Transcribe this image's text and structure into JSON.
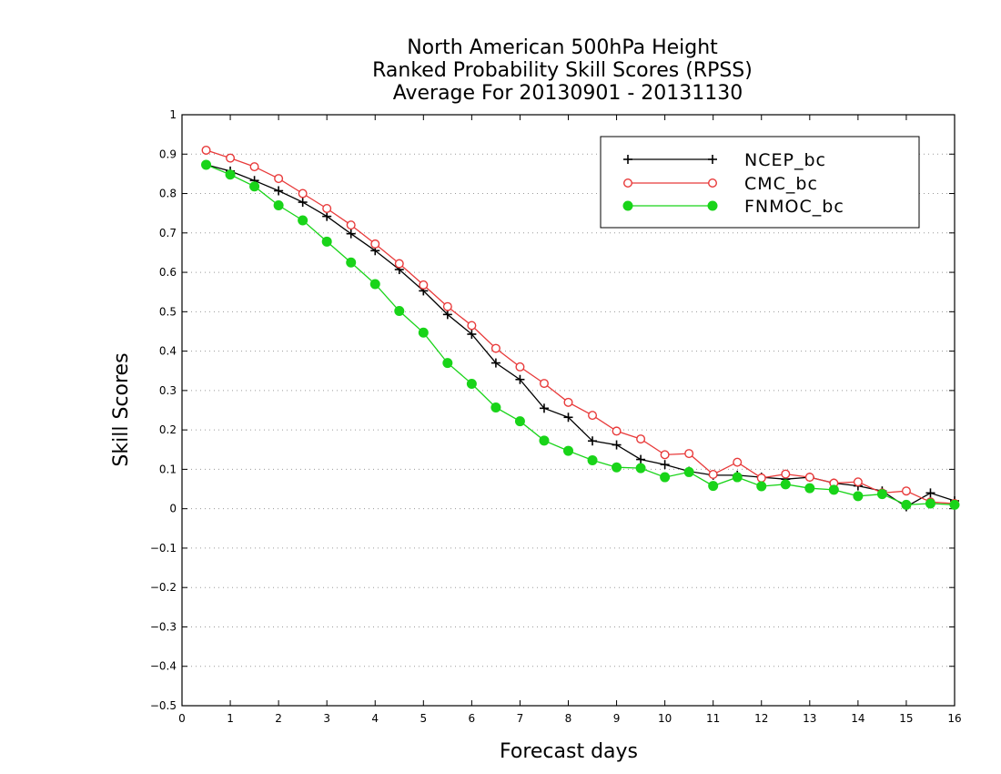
{
  "chart_data": {
    "type": "line",
    "title": [
      "North American 500hPa Height",
      "Ranked Probability Skill Scores (RPSS)",
      "Average For 20130901 - 20131130"
    ],
    "xlabel": "Forecast days",
    "ylabel": "Skill Scores",
    "xlim": [
      0,
      16
    ],
    "ylim": [
      -0.5,
      1
    ],
    "xticks": [
      "0",
      "1",
      "2",
      "3",
      "4",
      "5",
      "6",
      "7",
      "8",
      "9",
      "10",
      "11",
      "12",
      "13",
      "14",
      "15",
      "16"
    ],
    "yticks": [
      "−0.5",
      "−0.4",
      "−0.3",
      "−0.2",
      "−0.1",
      "0",
      "0.1",
      "0.2",
      "0.3",
      "0.4",
      "0.5",
      "0.6",
      "0.7",
      "0.8",
      "0.9",
      "1"
    ],
    "grid": "horizontal-dotted",
    "legend_position": "top-right",
    "x": [
      0.5,
      1,
      1.5,
      2,
      2.5,
      3,
      3.5,
      4,
      4.5,
      5,
      5.5,
      6,
      6.5,
      7,
      7.5,
      8,
      8.5,
      9,
      9.5,
      10,
      10.5,
      11,
      11.5,
      12,
      12.5,
      13,
      13.5,
      14,
      14.5,
      15,
      15.5,
      16
    ],
    "series": [
      {
        "name": "NCEP_bc",
        "color": "#000000",
        "marker": "plus",
        "values": [
          0.873,
          0.857,
          0.833,
          0.807,
          0.778,
          0.742,
          0.698,
          0.655,
          0.607,
          0.553,
          0.493,
          0.443,
          0.37,
          0.328,
          0.255,
          0.232,
          0.172,
          0.162,
          0.125,
          0.112,
          0.095,
          0.085,
          0.085,
          0.08,
          0.075,
          0.08,
          0.065,
          0.058,
          0.045,
          0.005,
          0.04,
          0.02
        ]
      },
      {
        "name": "CMC_bc",
        "color": "#e83a3a",
        "marker": "open-circle",
        "values": [
          0.91,
          0.89,
          0.868,
          0.838,
          0.8,
          0.762,
          0.72,
          0.672,
          0.622,
          0.568,
          0.513,
          0.465,
          0.407,
          0.36,
          0.318,
          0.27,
          0.237,
          0.197,
          0.177,
          0.137,
          0.14,
          0.087,
          0.118,
          0.078,
          0.088,
          0.08,
          0.065,
          0.068,
          0.04,
          0.045,
          0.017,
          0.013
        ]
      },
      {
        "name": "FNMOC_bc",
        "color": "#19d419",
        "marker": "filled-circle",
        "values": [
          0.873,
          0.848,
          0.818,
          0.77,
          0.732,
          0.678,
          0.625,
          0.57,
          0.502,
          0.447,
          0.37,
          0.317,
          0.257,
          0.222,
          0.173,
          0.147,
          0.123,
          0.105,
          0.103,
          0.08,
          0.093,
          0.058,
          0.08,
          0.057,
          0.062,
          0.052,
          0.048,
          0.032,
          0.037,
          0.01,
          0.013,
          0.01
        ]
      }
    ]
  }
}
